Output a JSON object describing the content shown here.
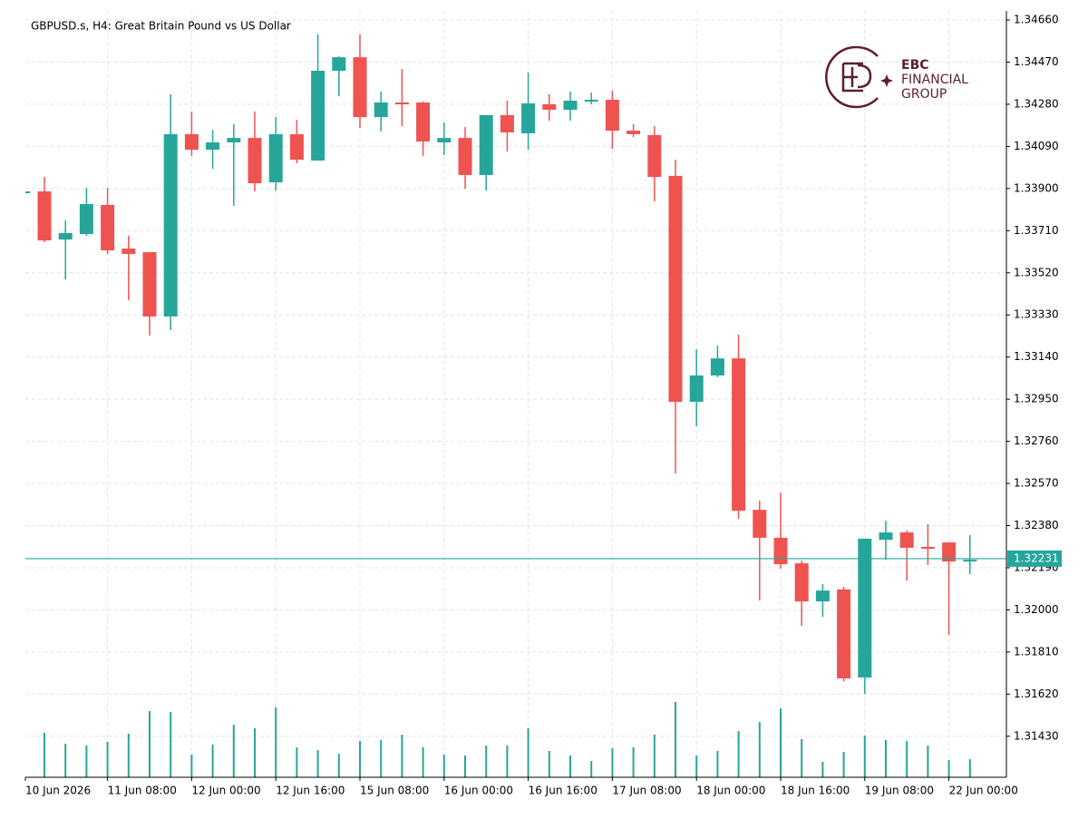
{
  "chart_data": {
    "type": "candlestick",
    "title": "GBPUSD.s, H4:  Great Britain Pound vs US Dollar",
    "categories": [
      "10 Jun 2026",
      null,
      null,
      null,
      "11 Jun 08:00",
      null,
      null,
      null,
      "12 Jun 00:00",
      null,
      null,
      null,
      "12 Jun 16:00",
      null,
      null,
      null,
      "15 Jun 08:00",
      null,
      null,
      null,
      "16 Jun 00:00",
      null,
      null,
      null,
      "16 Jun 16:00",
      null,
      null,
      null,
      "17 Jun 08:00",
      null,
      null,
      null,
      "18 Jun 00:00",
      null,
      null,
      null,
      "18 Jun 16:00",
      null,
      null,
      null,
      "19 Jun 08:00",
      null,
      null,
      null,
      "22 Jun 00:00",
      null
    ],
    "open": [
      1.33887,
      1.33887,
      1.3367,
      1.33695,
      1.33826,
      1.33629,
      1.33613,
      1.33323,
      1.34145,
      1.34075,
      1.34108,
      1.34128,
      1.33928,
      1.34145,
      1.34026,
      1.34431,
      1.34492,
      1.34222,
      1.34288,
      1.34288,
      1.34108,
      1.34128,
      1.33961,
      1.34231,
      1.34149,
      1.3428,
      1.34255,
      1.34292,
      1.343,
      1.34161,
      1.34141,
      1.33957,
      1.32938,
      1.33057,
      1.33134,
      1.32451,
      1.32325,
      1.3221,
      1.32038,
      1.32092,
      1.31695,
      1.32316,
      1.32349,
      1.32284,
      1.32304,
      1.32218
    ],
    "high": [
      1.33887,
      1.33952,
      1.33756,
      1.33903,
      1.33903,
      1.33687,
      1.33613,
      1.34325,
      1.34247,
      1.34165,
      1.3419,
      1.34247,
      1.34222,
      1.3421,
      1.34595,
      1.34496,
      1.34595,
      1.34337,
      1.34439,
      1.34292,
      1.34198,
      1.34177,
      1.34231,
      1.34296,
      1.34423,
      1.34325,
      1.34337,
      1.34333,
      1.34341,
      1.3419,
      1.34181,
      1.3403,
      1.33175,
      1.33192,
      1.33241,
      1.32492,
      1.32529,
      1.32222,
      1.32116,
      1.32104,
      1.32321,
      1.32402,
      1.32357,
      1.32386,
      1.32304,
      1.32337
    ],
    "low": [
      1.33887,
      1.33658,
      1.3349,
      1.33687,
      1.33605,
      1.33396,
      1.33237,
      1.33261,
      1.34047,
      1.33989,
      1.33822,
      1.33887,
      1.33891,
      1.34014,
      1.34026,
      1.34316,
      1.34173,
      1.34157,
      1.34181,
      1.34047,
      1.34051,
      1.33899,
      1.33891,
      1.34067,
      1.34075,
      1.34206,
      1.34206,
      1.3428,
      1.34079,
      1.34132,
      1.33842,
      1.32615,
      1.32828,
      1.33049,
      1.32411,
      1.32042,
      1.32186,
      1.31928,
      1.31969,
      1.31678,
      1.31621,
      1.32226,
      1.32132,
      1.32202,
      1.31887,
      1.32161
    ],
    "close": [
      1.33887,
      1.33666,
      1.33699,
      1.3383,
      1.33621,
      1.33605,
      1.33323,
      1.34145,
      1.34075,
      1.34108,
      1.34128,
      1.33924,
      1.34145,
      1.3403,
      1.34431,
      1.34492,
      1.34222,
      1.34288,
      1.3428,
      1.34112,
      1.34128,
      1.33961,
      1.34231,
      1.34153,
      1.34284,
      1.34255,
      1.34296,
      1.343,
      1.34161,
      1.34145,
      1.33952,
      1.32938,
      1.33057,
      1.33134,
      1.32447,
      1.32325,
      1.32206,
      1.32038,
      1.32087,
      1.31691,
      1.32321,
      1.32349,
      1.3228,
      1.32276,
      1.32218,
      1.32226
    ],
    "volume": [
      null,
      49,
      37,
      35,
      39,
      48,
      73,
      72,
      25,
      36,
      58,
      54,
      77,
      33,
      30,
      26,
      40,
      41,
      47,
      33,
      25,
      24,
      35,
      35,
      54,
      29,
      24,
      18,
      32,
      33,
      47,
      83,
      24,
      29,
      51,
      61,
      76,
      42,
      17,
      28,
      46,
      41,
      40,
      35,
      19,
      20
    ],
    "up_color": "#26a69a",
    "down_color": "#ef5350",
    "volume_color": "#26a69a",
    "ylim": [
      1.31245,
      1.34701
    ],
    "yticks": [
      {
        "value": 1.3466,
        "label": "1.34660"
      },
      {
        "value": 1.3447,
        "label": "1.34470"
      },
      {
        "value": 1.3428,
        "label": "1.34280"
      },
      {
        "value": 1.3409,
        "label": "1.34090"
      },
      {
        "value": 1.339,
        "label": "1.33900"
      },
      {
        "value": 1.3371,
        "label": "1.33710"
      },
      {
        "value": 1.3352,
        "label": "1.33520"
      },
      {
        "value": 1.3333,
        "label": "1.33330"
      },
      {
        "value": 1.3314,
        "label": "1.33140"
      },
      {
        "value": 1.3295,
        "label": "1.32950"
      },
      {
        "value": 1.3276,
        "label": "1.32760"
      },
      {
        "value": 1.3257,
        "label": "1.32570"
      },
      {
        "value": 1.3238,
        "label": "1.32380"
      },
      {
        "value": 1.3219,
        "label": "1.32190"
      },
      {
        "value": 1.32,
        "label": "1.32000"
      },
      {
        "value": 1.3181,
        "label": "1.31810"
      },
      {
        "value": 1.3162,
        "label": "1.31620"
      },
      {
        "value": 1.3143,
        "label": "1.31430"
      }
    ],
    "grid": true,
    "last_price": 1.32231,
    "last_price_color": "#26a69a"
  },
  "logo": {
    "line1": "EBC",
    "line2": "FINANCIAL",
    "line3": "GROUP"
  }
}
